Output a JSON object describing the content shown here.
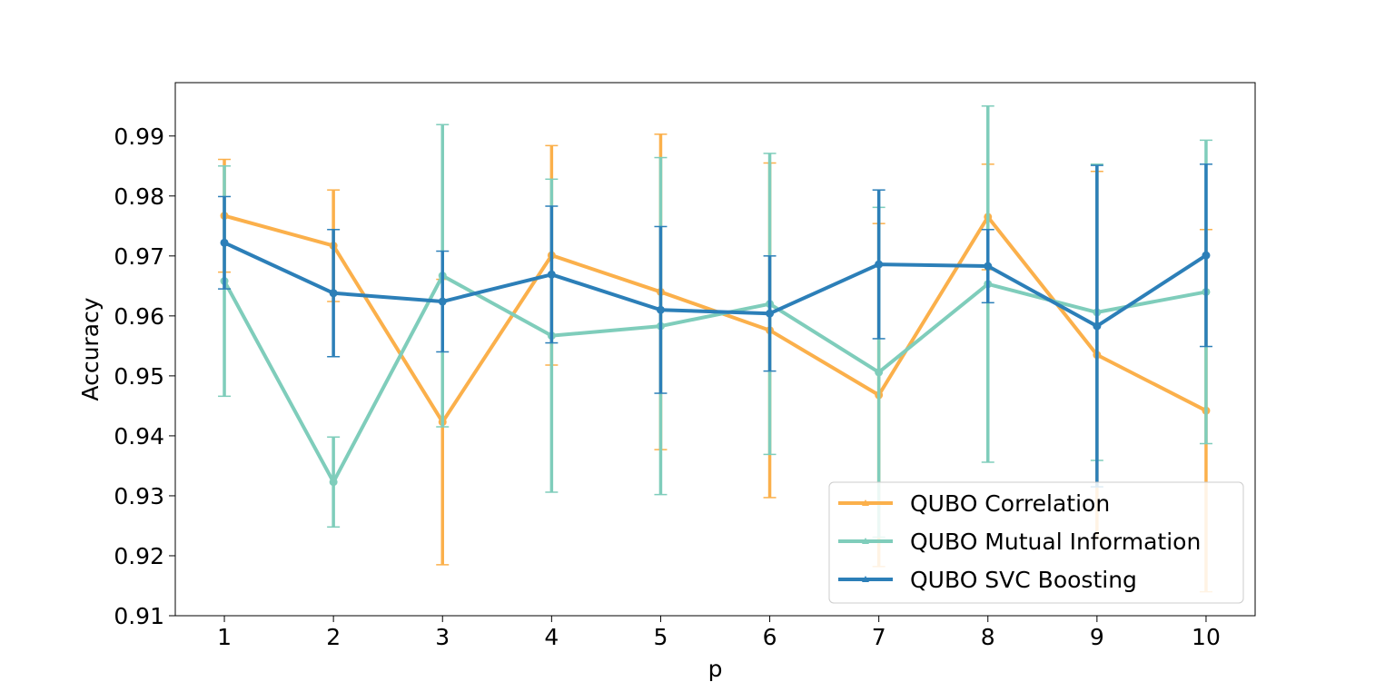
{
  "chart_data": {
    "type": "line",
    "xlabel": "p",
    "ylabel": "Accuracy",
    "x": [
      1,
      2,
      3,
      4,
      5,
      6,
      7,
      8,
      9,
      10
    ],
    "xticks": [
      "1",
      "2",
      "3",
      "4",
      "5",
      "6",
      "7",
      "8",
      "9",
      "10"
    ],
    "yticks": [
      "0.91",
      "0.92",
      "0.93",
      "0.94",
      "0.95",
      "0.96",
      "0.97",
      "0.98",
      "0.99"
    ],
    "ylim": [
      0.91,
      0.9989
    ],
    "xlim": [
      0.55,
      10.45
    ],
    "grid": false,
    "legend_position": "lower-right",
    "series": [
      {
        "name": "QUBO Correlation",
        "color": "#fbb04b",
        "values": [
          0.9767,
          0.9717,
          0.9423,
          0.9701,
          0.964,
          0.9576,
          0.9468,
          0.9765,
          0.9535,
          0.9442
        ],
        "errors": [
          0.0094,
          0.0093,
          0.0238,
          0.0183,
          0.0263,
          0.0279,
          0.0286,
          0.0088,
          0.0306,
          0.0302
        ]
      },
      {
        "name": "QUBO Mutual Information",
        "color": "#7fcdbb",
        "values": [
          0.9658,
          0.9323,
          0.9667,
          0.9567,
          0.9583,
          0.962,
          0.9506,
          0.9653,
          0.9606,
          0.964
        ],
        "errors": [
          0.0192,
          0.0075,
          0.0252,
          0.0261,
          0.0281,
          0.0251,
          0.0275,
          0.0297,
          0.0247,
          0.0253
        ]
      },
      {
        "name": "QUBO SVC Boosting",
        "color": "#2c7fb8",
        "values": [
          0.9722,
          0.9638,
          0.9624,
          0.9669,
          0.961,
          0.9604,
          0.9686,
          0.9683,
          0.9583,
          0.9701
        ],
        "errors": [
          0.0077,
          0.0106,
          0.0084,
          0.0114,
          0.0139,
          0.0096,
          0.0124,
          0.0061,
          0.0268,
          0.0152
        ]
      }
    ]
  }
}
